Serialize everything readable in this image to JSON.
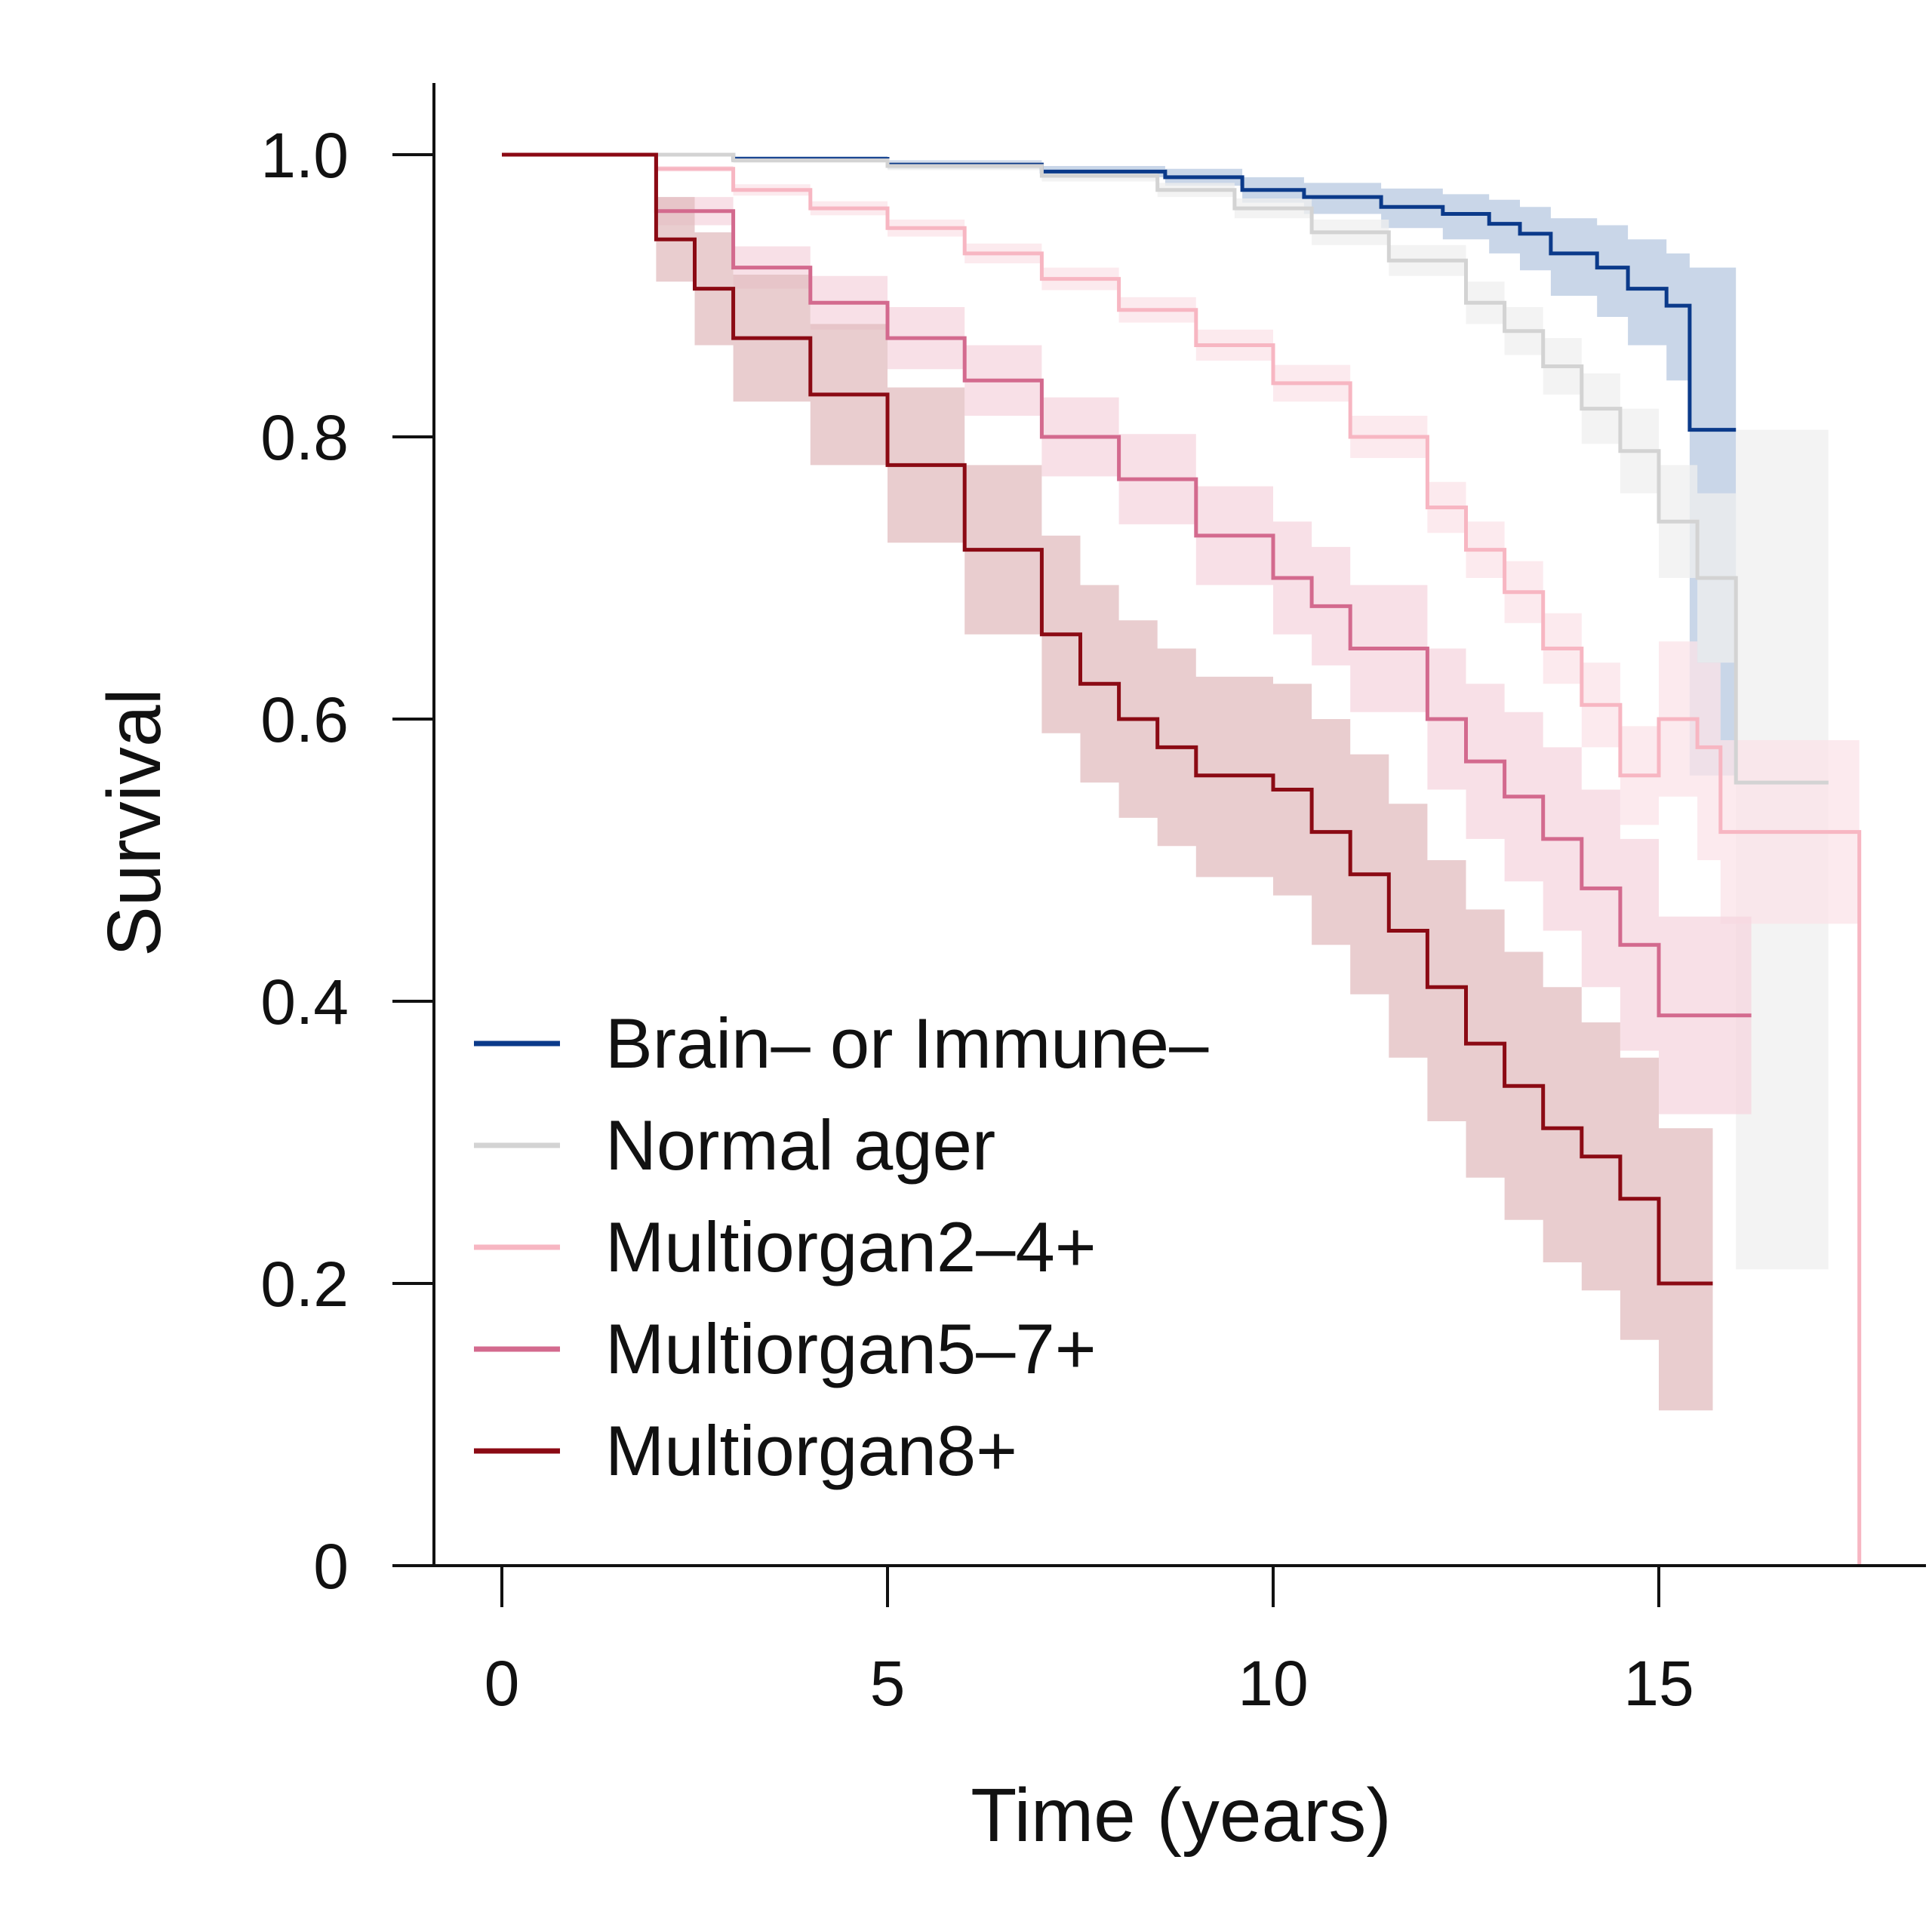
{
  "chart_data": {
    "type": "line",
    "subtype": "kaplan-meier",
    "xlabel": "Time (years)",
    "ylabel": "Survival",
    "xlim": [
      -1.6,
      18.5
    ],
    "ylim": [
      0,
      1.05
    ],
    "xticks": [
      0,
      5,
      10,
      15
    ],
    "xtick_labels": [
      "0",
      "5",
      "10",
      "15"
    ],
    "yticks": [
      0,
      0.2,
      0.4,
      0.6,
      0.8,
      1.0
    ],
    "ytick_labels": [
      "0",
      "0.2",
      "0.4",
      "0.6",
      "0.8",
      "1.0"
    ],
    "legend_position": "bottom-left",
    "series": [
      {
        "name": "Brain– or Immune–",
        "color": "#0b3a8a",
        "band_color": "#b7c8e0",
        "times": [
          0,
          1.2,
          3,
          5,
          7,
          8.6,
          9.6,
          10.4,
          11.4,
          12.2,
          12.8,
          13.2,
          13.6,
          14.2,
          14.6,
          15.1,
          15.4,
          16.0
        ],
        "survival": [
          1.0,
          1.0,
          0.997,
          0.993,
          0.988,
          0.984,
          0.975,
          0.97,
          0.963,
          0.958,
          0.951,
          0.944,
          0.93,
          0.92,
          0.905,
          0.893,
          0.805,
          0.805
        ],
        "lower": [
          1.0,
          1.0,
          0.995,
          0.99,
          0.984,
          0.978,
          0.966,
          0.958,
          0.948,
          0.94,
          0.93,
          0.918,
          0.9,
          0.885,
          0.865,
          0.84,
          0.56,
          0.56
        ],
        "upper": [
          1.0,
          1.0,
          0.999,
          0.996,
          0.992,
          0.99,
          0.984,
          0.98,
          0.976,
          0.972,
          0.968,
          0.963,
          0.955,
          0.95,
          0.94,
          0.93,
          0.92,
          0.92
        ]
      },
      {
        "name": "Normal ager",
        "color": "#d3d3d3",
        "band_color": "#efefef",
        "times": [
          0,
          1.2,
          3,
          5,
          7,
          8.5,
          9.5,
          10.5,
          11.5,
          12.5,
          13,
          13.5,
          14,
          14.5,
          15,
          15.5,
          16,
          17.2
        ],
        "survival": [
          1.0,
          1.0,
          0.996,
          0.992,
          0.985,
          0.975,
          0.962,
          0.945,
          0.925,
          0.895,
          0.875,
          0.85,
          0.82,
          0.79,
          0.74,
          0.7,
          0.555,
          0.555
        ],
        "lower": [
          1.0,
          1.0,
          0.994,
          0.989,
          0.981,
          0.97,
          0.955,
          0.936,
          0.914,
          0.88,
          0.858,
          0.83,
          0.795,
          0.76,
          0.7,
          0.64,
          0.21,
          0.21
        ],
        "upper": [
          1.0,
          1.0,
          0.998,
          0.995,
          0.989,
          0.98,
          0.969,
          0.954,
          0.936,
          0.91,
          0.892,
          0.87,
          0.845,
          0.82,
          0.78,
          0.76,
          0.805,
          0.805
        ]
      },
      {
        "name": "Multiorgan2–4+",
        "color": "#f7b6c2",
        "band_color": "#fbe3e8",
        "times": [
          0,
          1.2,
          2,
          3,
          4,
          5,
          6,
          7,
          8,
          9,
          10,
          11,
          12,
          12.5,
          13,
          13.5,
          14,
          14.5,
          15,
          15.5,
          15.8,
          17.6,
          17.6
        ],
        "survival": [
          1.0,
          1.0,
          0.99,
          0.975,
          0.962,
          0.948,
          0.93,
          0.912,
          0.89,
          0.865,
          0.838,
          0.8,
          0.75,
          0.72,
          0.69,
          0.65,
          0.61,
          0.56,
          0.6,
          0.58,
          0.52,
          0.52,
          0.0
        ],
        "lower": [
          1.0,
          1.0,
          0.988,
          0.971,
          0.957,
          0.942,
          0.923,
          0.904,
          0.881,
          0.854,
          0.825,
          0.785,
          0.732,
          0.7,
          0.668,
          0.625,
          0.58,
          0.525,
          0.545,
          0.5,
          0.455,
          0.455,
          0.0
        ],
        "upper": [
          1.0,
          1.0,
          0.992,
          0.979,
          0.967,
          0.954,
          0.937,
          0.92,
          0.899,
          0.876,
          0.851,
          0.815,
          0.768,
          0.74,
          0.712,
          0.675,
          0.64,
          0.595,
          0.655,
          0.64,
          0.585,
          0.585,
          0.0
        ]
      },
      {
        "name": "Multiorgan5–7+",
        "color": "#d36a8e",
        "band_color": "#f5d5df",
        "times": [
          0,
          1.2,
          2,
          3,
          4,
          5,
          6,
          7,
          8,
          9,
          10,
          10.5,
          11,
          12,
          12.5,
          13,
          13.5,
          14,
          14.5,
          15,
          16.2
        ],
        "survival": [
          1.0,
          1.0,
          0.96,
          0.92,
          0.895,
          0.87,
          0.84,
          0.8,
          0.77,
          0.73,
          0.7,
          0.68,
          0.65,
          0.6,
          0.57,
          0.545,
          0.515,
          0.48,
          0.44,
          0.39,
          0.39
        ],
        "lower": [
          1.0,
          1.0,
          0.95,
          0.905,
          0.876,
          0.848,
          0.815,
          0.772,
          0.738,
          0.695,
          0.66,
          0.638,
          0.605,
          0.55,
          0.515,
          0.485,
          0.45,
          0.41,
          0.365,
          0.32,
          0.32
        ],
        "upper": [
          1.0,
          1.0,
          0.97,
          0.935,
          0.914,
          0.892,
          0.865,
          0.828,
          0.802,
          0.765,
          0.74,
          0.722,
          0.695,
          0.65,
          0.625,
          0.605,
          0.58,
          0.55,
          0.515,
          0.46,
          0.46
        ]
      },
      {
        "name": "Multiorgan8+",
        "color": "#8b0a14",
        "band_color": "#e2bcbf",
        "times": [
          0,
          1.2,
          2,
          2.5,
          3,
          4,
          5,
          6,
          7,
          7.5,
          8,
          8.5,
          9,
          10,
          10.5,
          11,
          11.5,
          12,
          12.5,
          13,
          13.5,
          14,
          14.5,
          15,
          15.7
        ],
        "survival": [
          1.0,
          1.0,
          0.94,
          0.905,
          0.87,
          0.83,
          0.78,
          0.72,
          0.66,
          0.625,
          0.6,
          0.58,
          0.56,
          0.55,
          0.52,
          0.49,
          0.45,
          0.41,
          0.37,
          0.34,
          0.31,
          0.29,
          0.26,
          0.2,
          0.2
        ],
        "lower": [
          1.0,
          1.0,
          0.91,
          0.865,
          0.825,
          0.78,
          0.725,
          0.66,
          0.59,
          0.555,
          0.53,
          0.51,
          0.488,
          0.475,
          0.44,
          0.405,
          0.36,
          0.315,
          0.275,
          0.245,
          0.215,
          0.195,
          0.16,
          0.11,
          0.11
        ],
        "upper": [
          1.0,
          1.0,
          0.97,
          0.945,
          0.915,
          0.88,
          0.835,
          0.78,
          0.73,
          0.695,
          0.67,
          0.65,
          0.63,
          0.625,
          0.6,
          0.575,
          0.54,
          0.5,
          0.465,
          0.435,
          0.41,
          0.385,
          0.36,
          0.31,
          0.31
        ]
      }
    ]
  }
}
